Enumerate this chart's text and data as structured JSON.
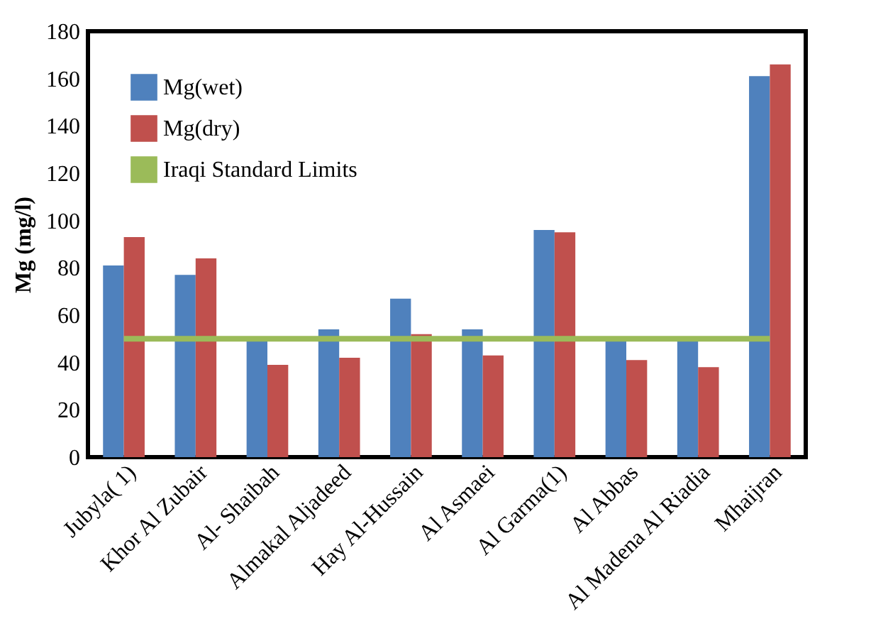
{
  "chart_data": {
    "type": "bar",
    "ylabel": "Mg (mg/l)",
    "categories": [
      "Jubyla( 1)",
      "Khor Al Zubair",
      "Al- Shaibah",
      "Almakal Aljadeed",
      "Hay Al-Hussain",
      "Al Asmaei",
      "Al Garma(1)",
      "Al Abbas",
      "Al Madena Al Riadia",
      "Mhaijran"
    ],
    "series": [
      {
        "name": "Mg(wet)",
        "color": "#4f81bd",
        "values": [
          81,
          77,
          50,
          54,
          67,
          54,
          96,
          50,
          50,
          161
        ]
      },
      {
        "name": "Mg(dry)",
        "color": "#c0504d",
        "values": [
          93,
          84,
          39,
          42,
          52,
          43,
          95,
          41,
          38,
          166
        ]
      },
      {
        "name": "Iraqi Standard Limits",
        "type": "line",
        "color": "#9bbb59",
        "values": [
          50,
          50,
          50,
          50,
          50,
          50,
          50,
          50,
          50,
          50
        ]
      }
    ],
    "ylim": [
      0,
      180
    ],
    "yticks": [
      0,
      20,
      40,
      60,
      80,
      100,
      120,
      140,
      160,
      180
    ],
    "grid": false,
    "legend": "top left"
  }
}
